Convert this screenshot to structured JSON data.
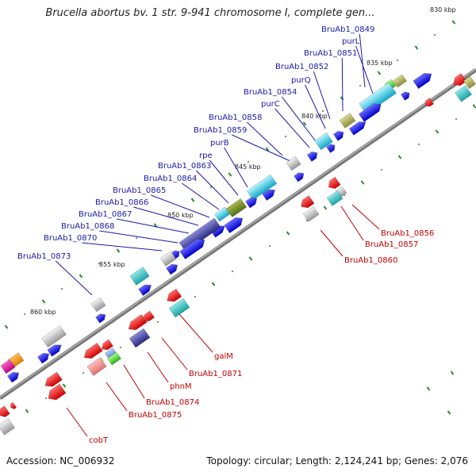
{
  "title": "Brucella abortus bv. 1 str. 9-941 chromosome I, complete gen...",
  "footer": {
    "accession": "Accession: NC_006932",
    "summary": "Topology: circular; Length: 2,124,241 bp; Genes: 2,076"
  },
  "colors": {
    "backbone": "#777777",
    "forward_label": "#1a1aa8",
    "reverse_label": "#c00000",
    "tick": "#2e8b2e"
  },
  "ticks": [
    "830 kbp",
    "835 kbp",
    "840 kbp",
    "845 kbp",
    "850 kbp",
    "855 kbp",
    "860 kbp"
  ],
  "forward_labels": [
    "BruAb1_0849",
    "purL",
    "BruAb1_0851",
    "BruAb1_0852",
    "purQ",
    "BruAb1_0854",
    "purC",
    "BruAb1_0858",
    "BruAb1_0859",
    "purB",
    "rpe",
    "BruAb1_0863",
    "BruAb1_0864",
    "BruAb1_0865",
    "BruAb1_0866",
    "BruAb1_0867",
    "BruAb1_0868",
    "BruAb1_0870",
    "BruAb1_0873"
  ],
  "reverse_labels": [
    "BruAb1_0856",
    "BruAb1_0857",
    "BruAb1_0860",
    "galM",
    "BruAb1_0871",
    "phnM",
    "BruAb1_0874",
    "BruAb1_0875",
    "cobT"
  ]
}
